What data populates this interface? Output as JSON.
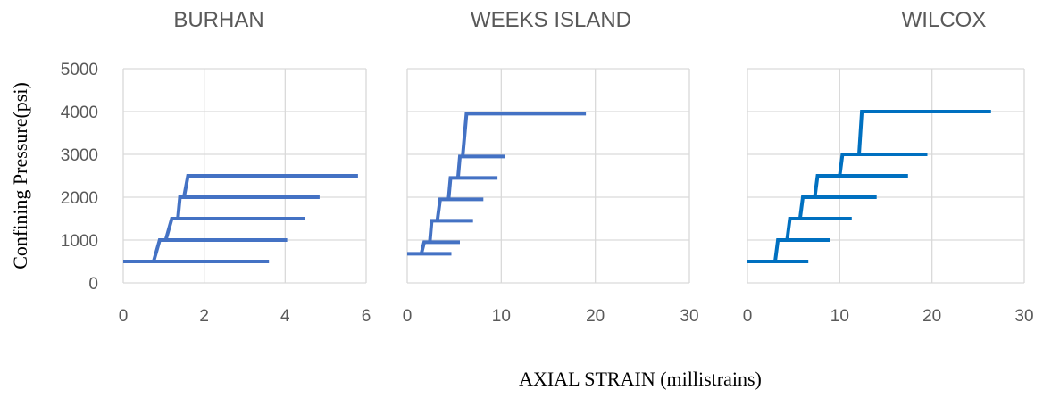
{
  "chart_data": {
    "type": "line",
    "ylabel": "Confining Pressure(psi)",
    "xlabel": "AXIAL STRAIN (millistrains)",
    "shared_ylim": [
      0,
      5000
    ],
    "y_ticks": [
      "0",
      "1000",
      "2000",
      "3000",
      "4000",
      "5000"
    ],
    "grid": true,
    "panels": [
      {
        "title": "BURHAN",
        "xlim": [
          0,
          6
        ],
        "x_ticks": [
          "0",
          "2",
          "4",
          "6"
        ],
        "color": "#4472c4",
        "series": [
          {
            "x": [
              0.0,
              3.6
            ],
            "y": [
              500,
              500
            ]
          },
          {
            "x": [
              0.75,
              0.9,
              4.05
            ],
            "y": [
              500,
              1000,
              1000
            ]
          },
          {
            "x": [
              1.05,
              1.2,
              4.5
            ],
            "y": [
              1000,
              1500,
              1500
            ]
          },
          {
            "x": [
              1.35,
              1.4,
              4.85
            ],
            "y": [
              1500,
              2000,
              2000
            ]
          },
          {
            "x": [
              1.5,
              1.6,
              5.8
            ],
            "y": [
              2000,
              2500,
              2500
            ]
          }
        ]
      },
      {
        "title": "WEEKS ISLAND",
        "xlim": [
          0,
          30
        ],
        "x_ticks": [
          "0",
          "10",
          "20",
          "30"
        ],
        "color": "#4472c4",
        "series": [
          {
            "x": [
              0.0,
              4.7
            ],
            "y": [
              680,
              680
            ]
          },
          {
            "x": [
              1.5,
              1.8,
              5.6
            ],
            "y": [
              680,
              950,
              950
            ]
          },
          {
            "x": [
              2.4,
              2.6,
              7.0
            ],
            "y": [
              950,
              1450,
              1450
            ]
          },
          {
            "x": [
              3.2,
              3.5,
              8.1
            ],
            "y": [
              1450,
              1950,
              1950
            ]
          },
          {
            "x": [
              4.4,
              4.6,
              9.6
            ],
            "y": [
              1950,
              2450,
              2450
            ]
          },
          {
            "x": [
              5.4,
              5.6,
              10.4
            ],
            "y": [
              2450,
              2950,
              2950
            ]
          },
          {
            "x": [
              5.9,
              6.3,
              19.0
            ],
            "y": [
              2950,
              3950,
              3950
            ]
          }
        ]
      },
      {
        "title": "WILCOX",
        "xlim": [
          0,
          30
        ],
        "x_ticks": [
          "0",
          "10",
          "20",
          "30"
        ],
        "color": "#0070c0",
        "series": [
          {
            "x": [
              0.0,
              6.6
            ],
            "y": [
              500,
              500
            ]
          },
          {
            "x": [
              3.0,
              3.3,
              9.0
            ],
            "y": [
              500,
              1000,
              1000
            ]
          },
          {
            "x": [
              4.3,
              4.6,
              11.3
            ],
            "y": [
              1000,
              1500,
              1500
            ]
          },
          {
            "x": [
              5.7,
              6.0,
              14.0
            ],
            "y": [
              1500,
              2000,
              2000
            ]
          },
          {
            "x": [
              7.3,
              7.6,
              17.4
            ],
            "y": [
              2000,
              2500,
              2500
            ]
          },
          {
            "x": [
              10.0,
              10.3,
              19.5
            ],
            "y": [
              2500,
              3000,
              3000
            ]
          },
          {
            "x": [
              12.1,
              12.4,
              26.4
            ],
            "y": [
              3000,
              4000,
              4000
            ]
          }
        ]
      }
    ]
  }
}
